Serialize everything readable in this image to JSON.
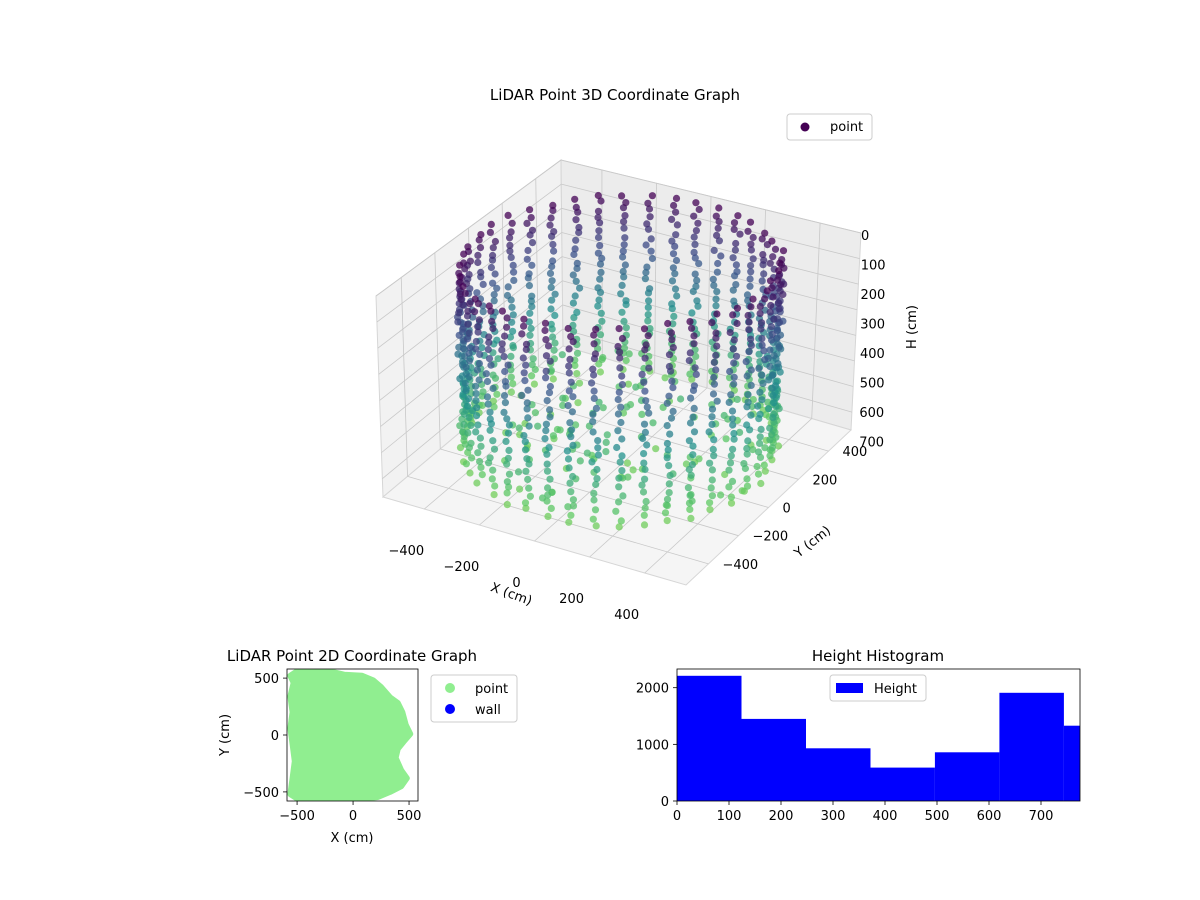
{
  "chart_data": [
    {
      "type": "scatter",
      "projection": "3d",
      "title": "LiDAR Point 3D Coordinate Graph",
      "xlabel": "X (cm)",
      "ylabel": "Y (cm)",
      "zlabel": "H (cm)",
      "xticks": [
        -400,
        -200,
        0,
        200,
        400
      ],
      "yticks": [
        -400,
        -200,
        0,
        200,
        400
      ],
      "zticks": [
        0,
        100,
        200,
        300,
        400,
        500,
        600,
        700
      ],
      "xlim": [
        -550,
        550
      ],
      "ylim": [
        -550,
        550
      ],
      "zlim": [
        770,
        0
      ],
      "z_axis_inverted": true,
      "colormap": "viridis",
      "legend": {
        "placement": "top-right",
        "entries": [
          {
            "name": "point",
            "color": "#440154"
          }
        ]
      },
      "series": [
        {
          "name": "point",
          "shape": "roughly cylindrical wall of points, radius about 500 cm, heights 0 to about 770 cm",
          "points": [
            {
              "x": -500,
              "y": 0,
              "h": 20
            },
            {
              "x": -500,
              "y": 0,
              "h": 400
            },
            {
              "x": -500,
              "y": 0,
              "h": 700
            },
            {
              "x": -350,
              "y": 350,
              "h": 20
            },
            {
              "x": -350,
              "y": 350,
              "h": 400
            },
            {
              "x": -350,
              "y": 350,
              "h": 700
            },
            {
              "x": 0,
              "y": 500,
              "h": 20
            },
            {
              "x": 0,
              "y": 500,
              "h": 400
            },
            {
              "x": 0,
              "y": 500,
              "h": 700
            },
            {
              "x": 350,
              "y": 350,
              "h": 20
            },
            {
              "x": 350,
              "y": 350,
              "h": 400
            },
            {
              "x": 350,
              "y": 350,
              "h": 700
            },
            {
              "x": 500,
              "y": 0,
              "h": 20
            },
            {
              "x": 500,
              "y": 0,
              "h": 400
            },
            {
              "x": 500,
              "y": 0,
              "h": 700
            },
            {
              "x": 350,
              "y": -350,
              "h": 20
            },
            {
              "x": 350,
              "y": -350,
              "h": 400
            },
            {
              "x": 350,
              "y": -350,
              "h": 700
            },
            {
              "x": 0,
              "y": -500,
              "h": 20
            },
            {
              "x": 0,
              "y": -500,
              "h": 400
            },
            {
              "x": 0,
              "y": -500,
              "h": 700
            },
            {
              "x": -350,
              "y": -350,
              "h": 20
            },
            {
              "x": -350,
              "y": -350,
              "h": 400
            },
            {
              "x": -350,
              "y": -350,
              "h": 700
            }
          ]
        }
      ]
    },
    {
      "type": "scatter",
      "title": "LiDAR Point 2D Coordinate Graph",
      "xlabel": "X (cm)",
      "ylabel": "Y (cm)",
      "xticks": [
        -500,
        0,
        500
      ],
      "yticks": [
        -500,
        0,
        500
      ],
      "xlim": [
        -590,
        580
      ],
      "ylim": [
        -580,
        580
      ],
      "legend": {
        "placement": "outside-right"
      },
      "series": [
        {
          "name": "point",
          "color": "#90ee90",
          "outline": [
            [
              -500,
              560
            ],
            [
              -350,
              560
            ],
            [
              -210,
              560
            ],
            [
              -80,
              530
            ],
            [
              80,
              520
            ],
            [
              180,
              480
            ],
            [
              250,
              420
            ],
            [
              330,
              330
            ],
            [
              400,
              280
            ],
            [
              440,
              200
            ],
            [
              470,
              90
            ],
            [
              510,
              10
            ],
            [
              450,
              -60
            ],
            [
              400,
              -120
            ],
            [
              380,
              -200
            ],
            [
              430,
              -310
            ],
            [
              480,
              -380
            ],
            [
              430,
              -450
            ],
            [
              330,
              -500
            ],
            [
              220,
              -545
            ],
            [
              100,
              -560
            ],
            [
              -50,
              -560
            ],
            [
              -200,
              -560
            ],
            [
              -350,
              -560
            ],
            [
              -480,
              -570
            ],
            [
              -560,
              -520
            ],
            [
              -540,
              -380
            ],
            [
              -520,
              -230
            ],
            [
              -540,
              -80
            ],
            [
              -560,
              60
            ],
            [
              -540,
              200
            ],
            [
              -560,
              340
            ],
            [
              -530,
              460
            ],
            [
              -560,
              520
            ]
          ]
        },
        {
          "name": "wall",
          "color": "#0000ff",
          "points": []
        }
      ]
    },
    {
      "type": "bar",
      "subtype": "histogram",
      "title": "Height Histogram",
      "xlabel": "",
      "ylabel": "",
      "xticks": [
        0,
        100,
        200,
        300,
        400,
        500,
        600,
        700
      ],
      "yticks": [
        0,
        1000,
        2000
      ],
      "xlim": [
        0,
        775
      ],
      "ylim": [
        0,
        2330
      ],
      "legend": {
        "placement": "top-center",
        "entries": [
          {
            "name": "Height",
            "color": "#0000ff"
          }
        ]
      },
      "bin_edges": [
        0,
        124,
        248,
        372,
        496,
        620,
        744,
        775
      ],
      "series": [
        {
          "name": "Height",
          "color": "#0000ff",
          "values": [
            2210,
            1450,
            930,
            590,
            860,
            1910,
            1330
          ]
        }
      ]
    }
  ]
}
